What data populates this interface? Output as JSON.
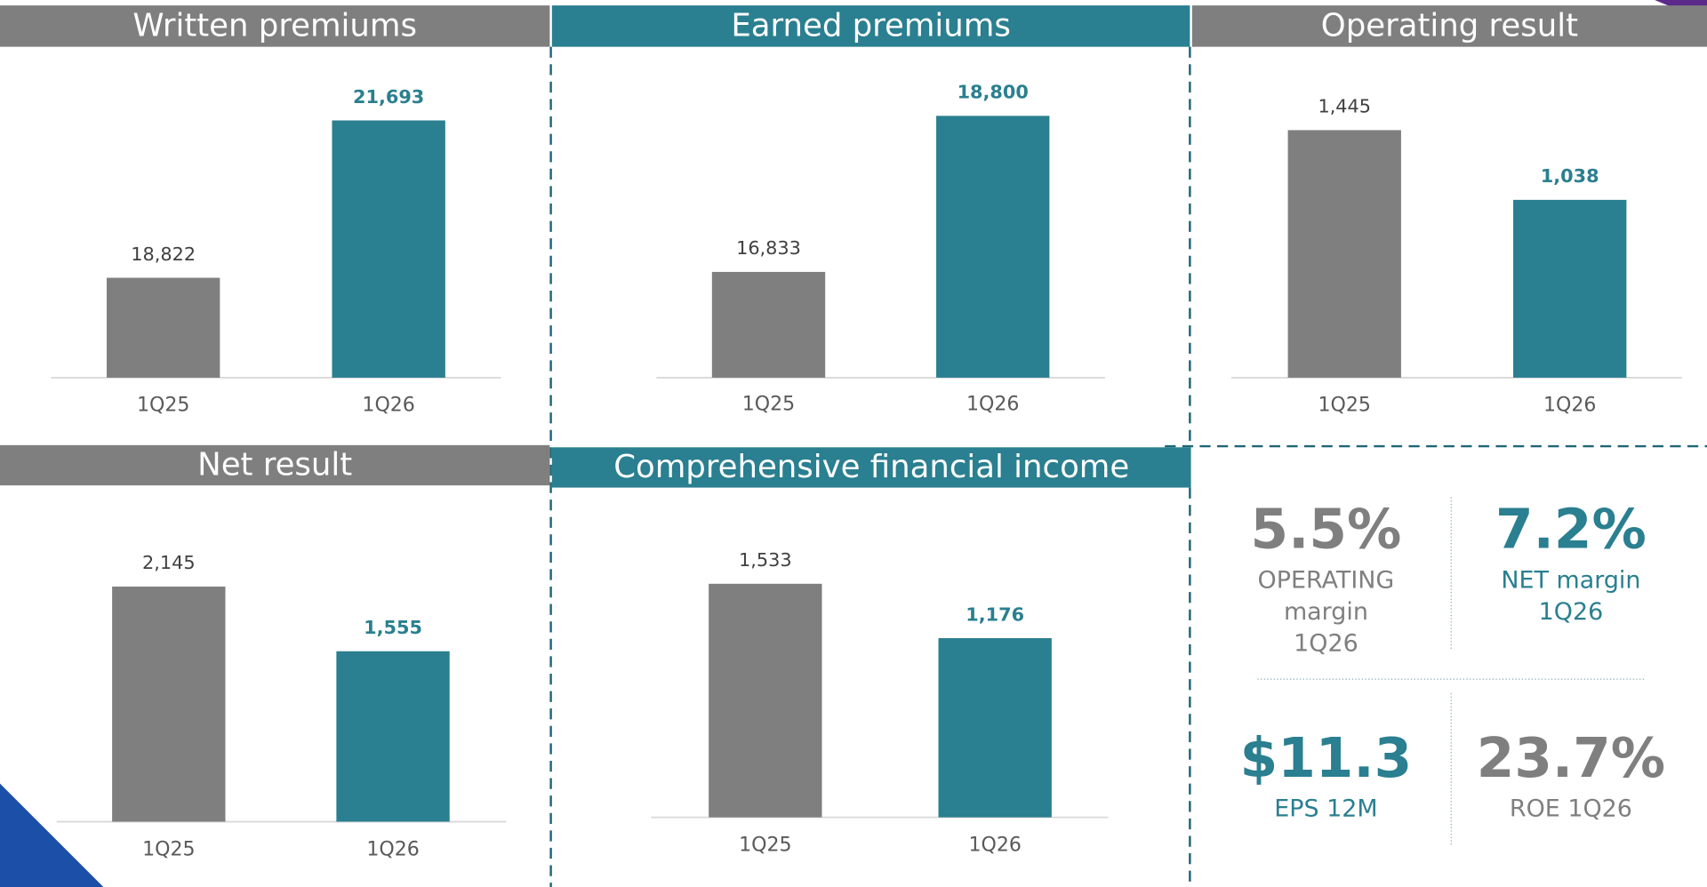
{
  "chart_data": [
    {
      "type": "bar",
      "title": "Written premiums",
      "categories": [
        "1Q25",
        "1Q26"
      ],
      "values": [
        18822,
        21693
      ],
      "value_labels": [
        "18,822",
        "21,693"
      ],
      "colors": [
        "#7f7f7f",
        "#2a7f90"
      ],
      "ylim": [
        17000,
        22500
      ]
    },
    {
      "type": "bar",
      "title": "Earned premiums",
      "categories": [
        "1Q25",
        "1Q26"
      ],
      "values": [
        16833,
        18800
      ],
      "value_labels": [
        "16,833",
        "18,800"
      ],
      "colors": [
        "#7f7f7f",
        "#2a7f90"
      ],
      "ylim": [
        15500,
        19300
      ]
    },
    {
      "type": "bar",
      "title": "Operating result",
      "categories": [
        "1Q25",
        "1Q26"
      ],
      "values": [
        1445,
        1038
      ],
      "value_labels": [
        "1,445",
        "1,038"
      ],
      "colors": [
        "#7f7f7f",
        "#2a7f90"
      ],
      "ylim": [
        0,
        1760
      ]
    },
    {
      "type": "bar",
      "title": "Net result",
      "categories": [
        "1Q25",
        "1Q26"
      ],
      "values": [
        2145,
        1555
      ],
      "value_labels": [
        "2,145",
        "1,555"
      ],
      "colors": [
        "#7f7f7f",
        "#2a7f90"
      ],
      "ylim": [
        0,
        2780
      ]
    },
    {
      "type": "bar",
      "title": "Comprehensive financial income",
      "categories": [
        "1Q25",
        "1Q26"
      ],
      "values": [
        1533,
        1176
      ],
      "value_labels": [
        "1,533",
        "1,176"
      ],
      "colors": [
        "#7f7f7f",
        "#2a7f90"
      ],
      "ylim": [
        0,
        2000
      ]
    }
  ],
  "kpis": [
    {
      "value": "5.5%",
      "label": [
        "OPERATING",
        "margin",
        "1Q26"
      ],
      "color": "#7f7f7f"
    },
    {
      "value": "7.2%",
      "label": [
        "NET margin",
        "1Q26"
      ],
      "color": "#2a7f90"
    },
    {
      "value": "$11.3",
      "label": [
        "EPS 12M"
      ],
      "color": "#2a7f90"
    },
    {
      "value": "23.7%",
      "label": [
        "ROE 1Q26"
      ],
      "color": "#7f7f7f"
    }
  ]
}
